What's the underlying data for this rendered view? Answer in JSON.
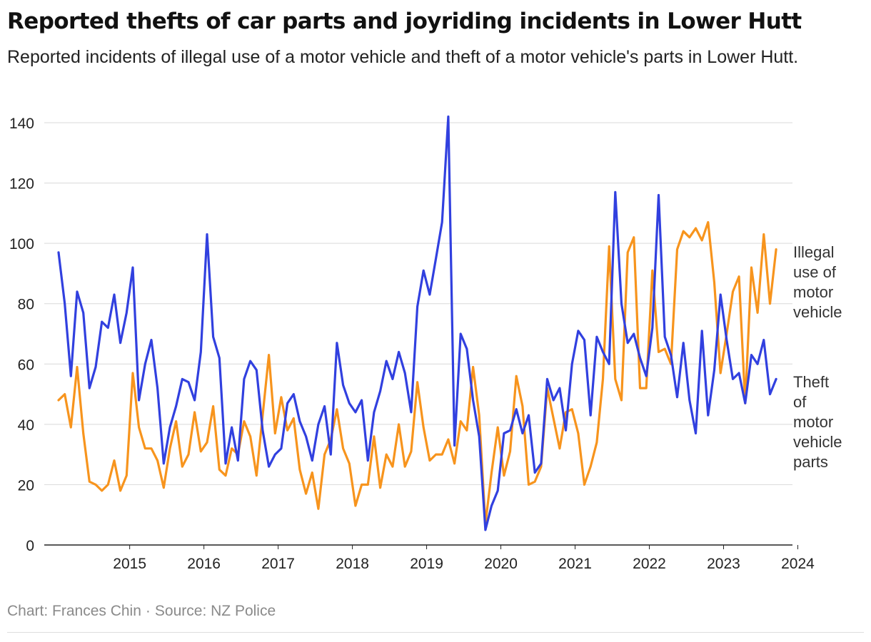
{
  "title": "Reported thefts of car parts and joyriding incidents in Lower Hutt",
  "subtitle": "Reported incidents of illegal use of a motor vehicle and theft of a motor vehicle's parts in Lower Hutt.",
  "footer": {
    "chart": "Chart: Frances Chin",
    "separator": "·",
    "source": "Source: NZ Police"
  },
  "chart_data": {
    "type": "line",
    "xlabel": "",
    "ylabel": "",
    "ylim": [
      0,
      140
    ],
    "y_ticks": [
      "0",
      "20",
      "40",
      "60",
      "80",
      "100",
      "120",
      "140"
    ],
    "x_ticks": [
      "2015",
      "2016",
      "2017",
      "2018",
      "2019",
      "2020",
      "2021",
      "2022",
      "2023",
      "2024"
    ],
    "x_start": "2014-07",
    "x_end": "2024-04",
    "x_unit": "month",
    "grid": true,
    "legend": "right, labels next to line ends",
    "series": [
      {
        "name": "Illegal use of motor vehicle",
        "label_lines": [
          "Illegal",
          "use of",
          "motor",
          "vehicle"
        ],
        "color": "#f7941d",
        "values": [
          48,
          50,
          39,
          59,
          37,
          21,
          20,
          18,
          20,
          28,
          18,
          23,
          57,
          39,
          32,
          32,
          28,
          19,
          32,
          41,
          26,
          30,
          44,
          31,
          34,
          46,
          25,
          23,
          32,
          30,
          41,
          36,
          23,
          43,
          63,
          37,
          49,
          38,
          42,
          25,
          17,
          24,
          12,
          30,
          35,
          45,
          32,
          27,
          13,
          20,
          20,
          36,
          19,
          30,
          26,
          40,
          26,
          31,
          54,
          39,
          28,
          30,
          30,
          35,
          27,
          41,
          38,
          59,
          43,
          7,
          24,
          39,
          23,
          31,
          56,
          46,
          20,
          21,
          26,
          52,
          42,
          32,
          44,
          45,
          37,
          20,
          26,
          34,
          55,
          99,
          55,
          48,
          97,
          102,
          52,
          52,
          91,
          64,
          65,
          60,
          98,
          104,
          102,
          105,
          101,
          107,
          87,
          57,
          70,
          84,
          89,
          47,
          92,
          77,
          103,
          80,
          98
        ]
      },
      {
        "name": "Theft of motor vehicle parts",
        "label_lines": [
          "Theft",
          "of",
          "motor",
          "vehicle",
          "parts"
        ],
        "color": "#3140df",
        "values": [
          97,
          80,
          56,
          84,
          77,
          52,
          59,
          74,
          72,
          83,
          67,
          77,
          92,
          48,
          60,
          68,
          52,
          27,
          39,
          46,
          55,
          54,
          48,
          64,
          103,
          69,
          62,
          27,
          39,
          28,
          55,
          61,
          58,
          38,
          26,
          30,
          32,
          47,
          50,
          41,
          36,
          28,
          40,
          46,
          30,
          67,
          53,
          47,
          44,
          48,
          28,
          44,
          51,
          61,
          55,
          64,
          57,
          44,
          79,
          91,
          83,
          95,
          107,
          142,
          33,
          70,
          65,
          48,
          36,
          5,
          13,
          18,
          37,
          38,
          45,
          37,
          43,
          24,
          27,
          55,
          48,
          52,
          38,
          60,
          71,
          68,
          43,
          69,
          64,
          60,
          117,
          80,
          67,
          70,
          62,
          56,
          72,
          116,
          69,
          63,
          49,
          67,
          48,
          37,
          71,
          43,
          58,
          83,
          68,
          55,
          57,
          47,
          63,
          60,
          68,
          50,
          55
        ]
      }
    ]
  }
}
